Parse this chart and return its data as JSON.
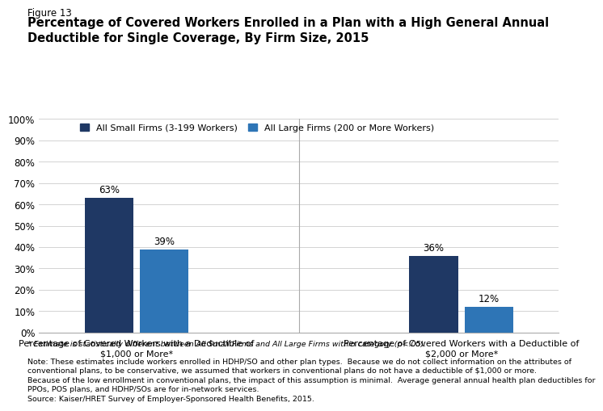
{
  "figure_label": "Figure 13",
  "title": "Percentage of Covered Workers Enrolled in a Plan with a High General Annual\nDeductible for Single Coverage, By Firm Size, 2015",
  "categories": [
    "Percentage of Covered Workers with a Deductible of\n$1,000 or More*",
    "Percentage of Covered Workers with a Deductible of\n$2,000 or More*"
  ],
  "small_firms": [
    63,
    36
  ],
  "large_firms": [
    39,
    12
  ],
  "small_firms_label": "All Small Firms (3-199 Workers)",
  "large_firms_label": "All Large Firms (200 or More Workers)",
  "small_firms_color": "#1F3864",
  "large_firms_color": "#2E75B6",
  "ylim": [
    0,
    100
  ],
  "yticks": [
    0,
    10,
    20,
    30,
    40,
    50,
    60,
    70,
    80,
    90,
    100
  ],
  "ytick_labels": [
    "0%",
    "10%",
    "20%",
    "30%",
    "40%",
    "50%",
    "60%",
    "70%",
    "80%",
    "90%",
    "100%"
  ],
  "footnote1": "* Estimate is statistically different between All Small Firms and All Large Firms within category (p<.05).",
  "footnote2": "Note: These estimates include workers enrolled in HDHP/SO and other plan types.  Because we do not collect information on the attributes of\nconventional plans, to be conservative, we assumed that workers in conventional plans do not have a deductible of $1,000 or more.\nBecause of the low enrollment in conventional plans, the impact of this assumption is minimal.  Average general annual health plan deductibles for\nPPOs, POS plans, and HDHP/SOs are for in-network services.",
  "footnote3": "Source: Kaiser/HRET Survey of Employer-Sponsored Health Benefits, 2015.",
  "background_color": "#FFFFFF"
}
